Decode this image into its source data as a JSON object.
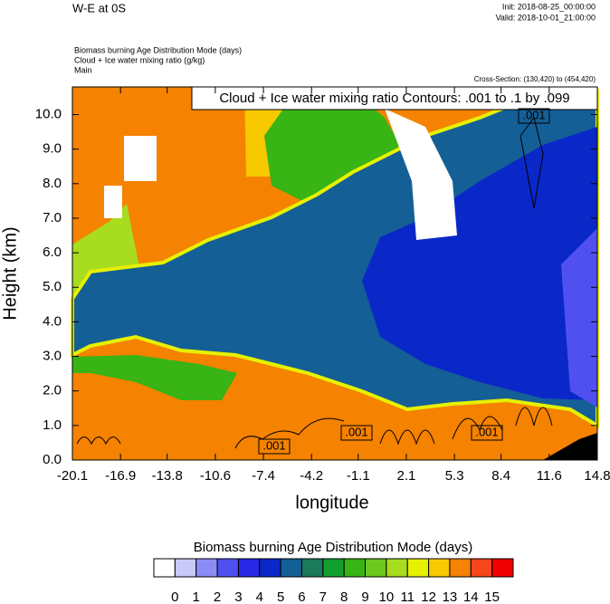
{
  "chart_data": {
    "type": "contour",
    "title": "W-E at 0S",
    "init": "Init: 2018-08-25_00:00:00",
    "valid": "Valid: 2018-10-01_21:00:00",
    "field_labels": [
      "Biomass burning Age Distribution Mode   (days)",
      "Cloud + Ice water mixing ratio   (g/kg)",
      "Main"
    ],
    "cross_section": "Cross-Section: (130,420) to (454,420)",
    "contour_info": "Cloud + Ice water mixing ratio Contours: .001 to .1 by .099",
    "contour_labels": [
      ".001",
      ".001",
      ".001",
      ".001"
    ],
    "xlabel": "longitude",
    "ylabel": "Height (km)",
    "xlim": [
      -20.1,
      14.8
    ],
    "xticks": [
      -20.1,
      -16.9,
      -13.8,
      -10.6,
      -7.4,
      -4.2,
      -1.1,
      2.1,
      5.3,
      8.4,
      11.6,
      14.8
    ],
    "ylim": [
      0,
      10.8
    ],
    "yticks": [
      {
        "value": 0,
        "label": "0.0"
      },
      {
        "value": 1,
        "label": "1.0"
      },
      {
        "value": 2,
        "label": "2.0"
      },
      {
        "value": 3,
        "label": "3.0"
      },
      {
        "value": 4,
        "label": "4.0"
      },
      {
        "value": 5,
        "label": "5.0"
      },
      {
        "value": 6,
        "label": "6.0"
      },
      {
        "value": 7,
        "label": "7.0"
      },
      {
        "value": 8,
        "label": "8.0"
      },
      {
        "value": 9,
        "label": "9.0"
      },
      {
        "value": 10,
        "label": "10.0"
      }
    ],
    "colorbar_title": "Biomass burning Age Distribution Mode  (days)",
    "levels": [
      0,
      1,
      2,
      3,
      4,
      5,
      6,
      7,
      8,
      9,
      10,
      11,
      12,
      13,
      14,
      15
    ],
    "colors": [
      "#ffffff",
      "#c8c8fa",
      "#8c8cf5",
      "#5050f0",
      "#2828e6",
      "#0a28c8",
      "#145f96",
      "#1a7a5a",
      "#10a030",
      "#38b414",
      "#6ec81e",
      "#a8dc1e",
      "#e6f000",
      "#f8c800",
      "#f58200",
      "#f5461e",
      "#f00000"
    ]
  }
}
